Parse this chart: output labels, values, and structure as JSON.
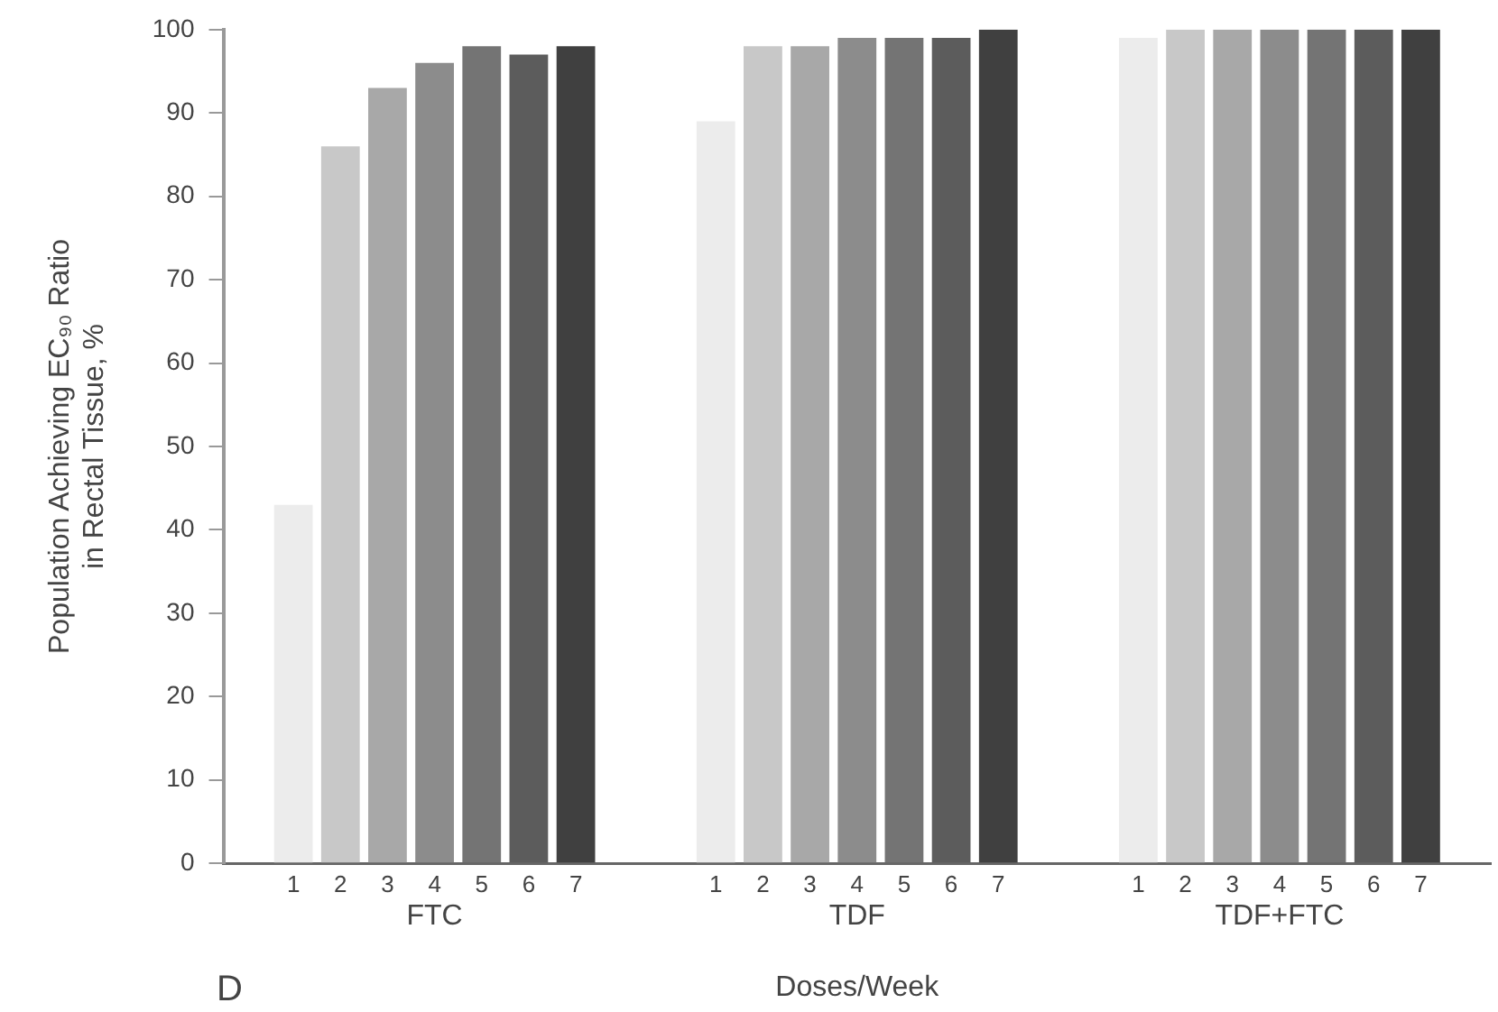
{
  "chart_data": {
    "type": "bar",
    "categories": [
      "FTC",
      "TDF",
      "TDF+FTC"
    ],
    "xlabel": "Doses/Week",
    "ylabel": "Population Achieving EC₉₀ Ratio\nin Rectal Tissue, %",
    "ylim": [
      0,
      100
    ],
    "yticks": [
      0,
      10,
      20,
      30,
      40,
      50,
      60,
      70,
      80,
      90,
      100
    ],
    "annotations": [
      "D"
    ],
    "series": [
      {
        "name": "1",
        "color": "#ececec",
        "values": [
          43,
          89,
          99
        ]
      },
      {
        "name": "2",
        "color": "#c8c8c8",
        "values": [
          86,
          98,
          100
        ]
      },
      {
        "name": "3",
        "color": "#a8a8a8",
        "values": [
          93,
          98,
          100
        ]
      },
      {
        "name": "4",
        "color": "#8c8c8c",
        "values": [
          96,
          99,
          100
        ]
      },
      {
        "name": "5",
        "color": "#747474",
        "values": [
          98,
          99,
          100
        ]
      },
      {
        "name": "6",
        "color": "#5c5c5c",
        "values": [
          97,
          99,
          100
        ]
      },
      {
        "name": "7",
        "color": "#404040",
        "values": [
          98,
          100,
          100
        ]
      }
    ]
  }
}
